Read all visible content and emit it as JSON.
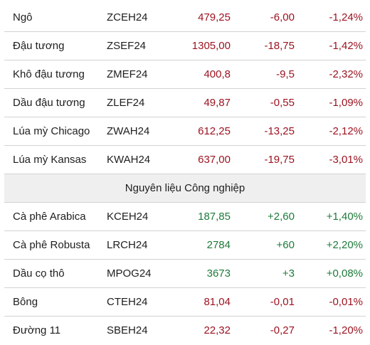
{
  "colors": {
    "down": "#9c1321",
    "up": "#1d7a3a",
    "section_bg": "#efefef"
  },
  "group1": [
    {
      "name": "Ngô",
      "code": "ZCEH24",
      "price": "479,25",
      "change": "-6,00",
      "pct": "-1,24%",
      "dir": "down"
    },
    {
      "name": "Đậu tương",
      "code": "ZSEF24",
      "price": "1305,00",
      "change": "-18,75",
      "pct": "-1,42%",
      "dir": "down"
    },
    {
      "name": "Khô đậu tương",
      "code": "ZMEF24",
      "price": "400,8",
      "change": "-9,5",
      "pct": "-2,32%",
      "dir": "down"
    },
    {
      "name": "Dầu đậu tương",
      "code": "ZLEF24",
      "price": "49,87",
      "change": "-0,55",
      "pct": "-1,09%",
      "dir": "down"
    },
    {
      "name": "Lúa mỳ Chicago",
      "code": "ZWAH24",
      "price": "612,25",
      "change": "-13,25",
      "pct": "-2,12%",
      "dir": "down"
    },
    {
      "name": "Lúa mỳ Kansas",
      "code": "KWAH24",
      "price": "637,00",
      "change": "-19,75",
      "pct": "-3,01%",
      "dir": "down"
    }
  ],
  "section_title": "Nguyên liệu Công nghiệp",
  "group2": [
    {
      "name": "Cà phê Arabica",
      "code": "KCEH24",
      "price": "187,85",
      "change": "+2,60",
      "pct": "+1,40%",
      "dir": "up"
    },
    {
      "name": "Cà phê Robusta",
      "code": "LRCH24",
      "price": "2784",
      "change": "+60",
      "pct": "+2,20%",
      "dir": "up"
    },
    {
      "name": "Dầu cọ thô",
      "code": "MPOG24",
      "price": "3673",
      "change": "+3",
      "pct": "+0,08%",
      "dir": "up"
    },
    {
      "name": "Bông",
      "code": "CTEH24",
      "price": "81,04",
      "change": "-0,01",
      "pct": "-0,01%",
      "dir": "down"
    },
    {
      "name": "Đường 11",
      "code": "SBEH24",
      "price": "22,32",
      "change": "-0,27",
      "pct": "-1,20%",
      "dir": "down"
    }
  ]
}
